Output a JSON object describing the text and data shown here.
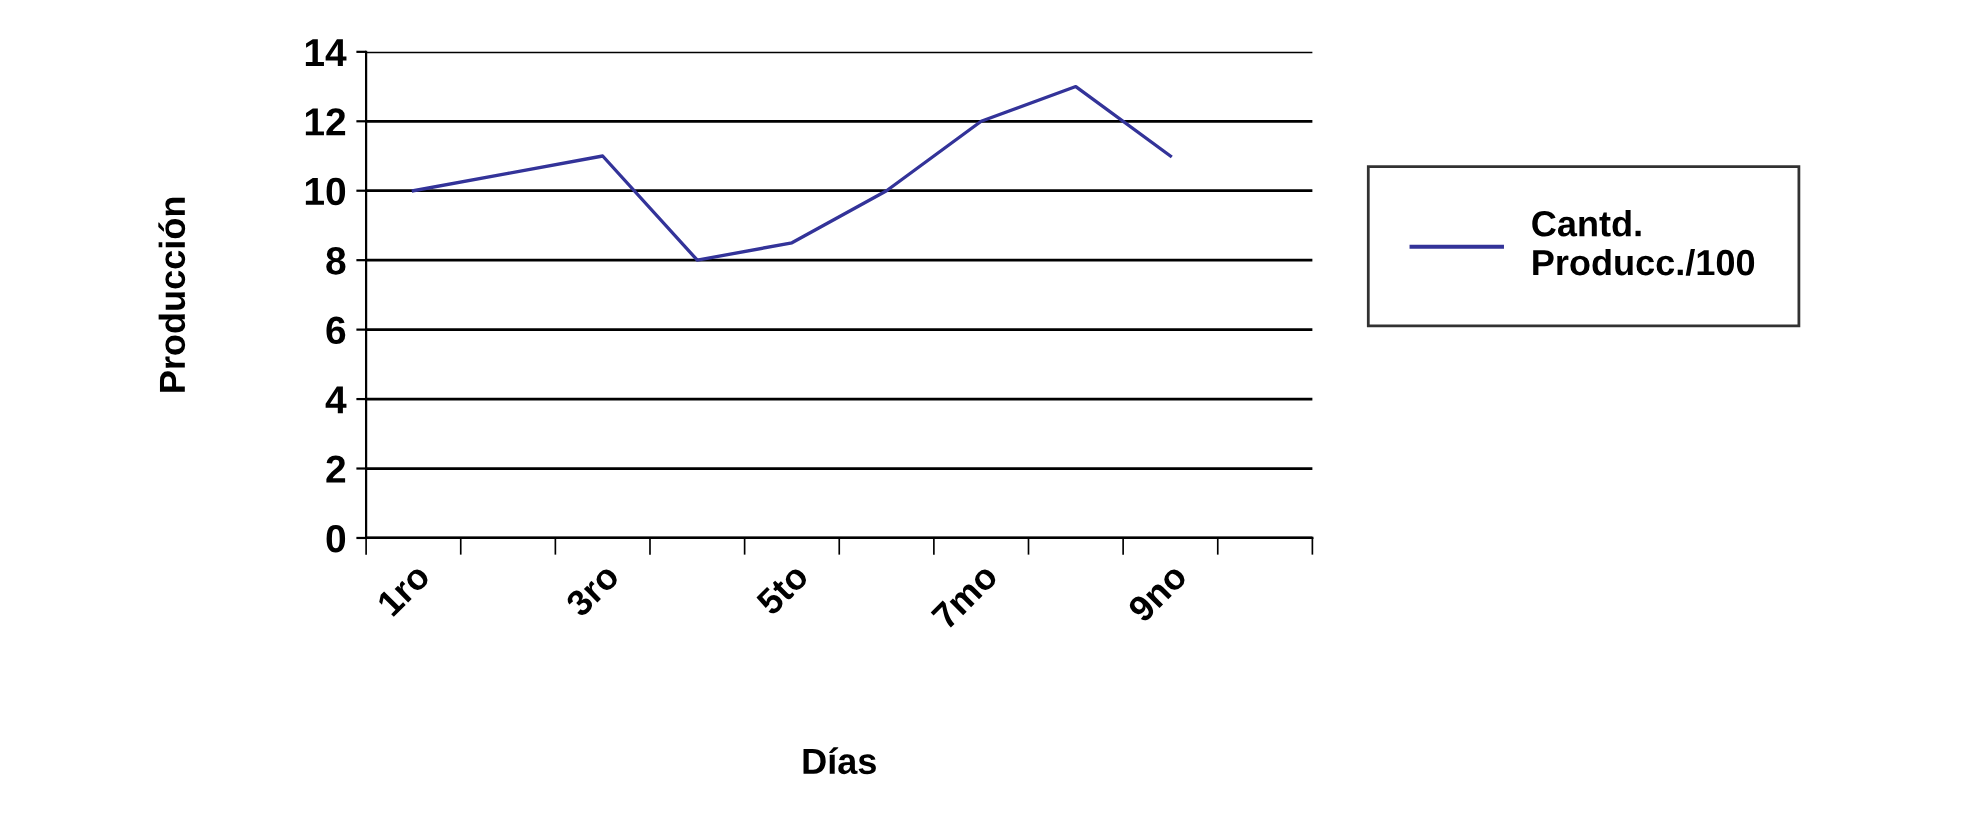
{
  "chart_data": {
    "type": "line",
    "xlabel": "Días",
    "ylabel": "Producción",
    "categories": [
      "1ro",
      null,
      "3ro",
      null,
      "5to",
      null,
      "7mo",
      null,
      "9no",
      null
    ],
    "series": [
      {
        "name": "Cantd.\nProducc./100",
        "color": "#333399",
        "values": [
          10,
          10.5,
          11,
          8,
          8.5,
          10,
          12,
          13,
          11,
          null
        ]
      }
    ],
    "ylim": [
      0,
      14
    ],
    "yticks": [
      0,
      2,
      4,
      6,
      8,
      10,
      12,
      14
    ],
    "grid": "y",
    "legend": "right",
    "marker": "none",
    "line_style": "solid"
  }
}
